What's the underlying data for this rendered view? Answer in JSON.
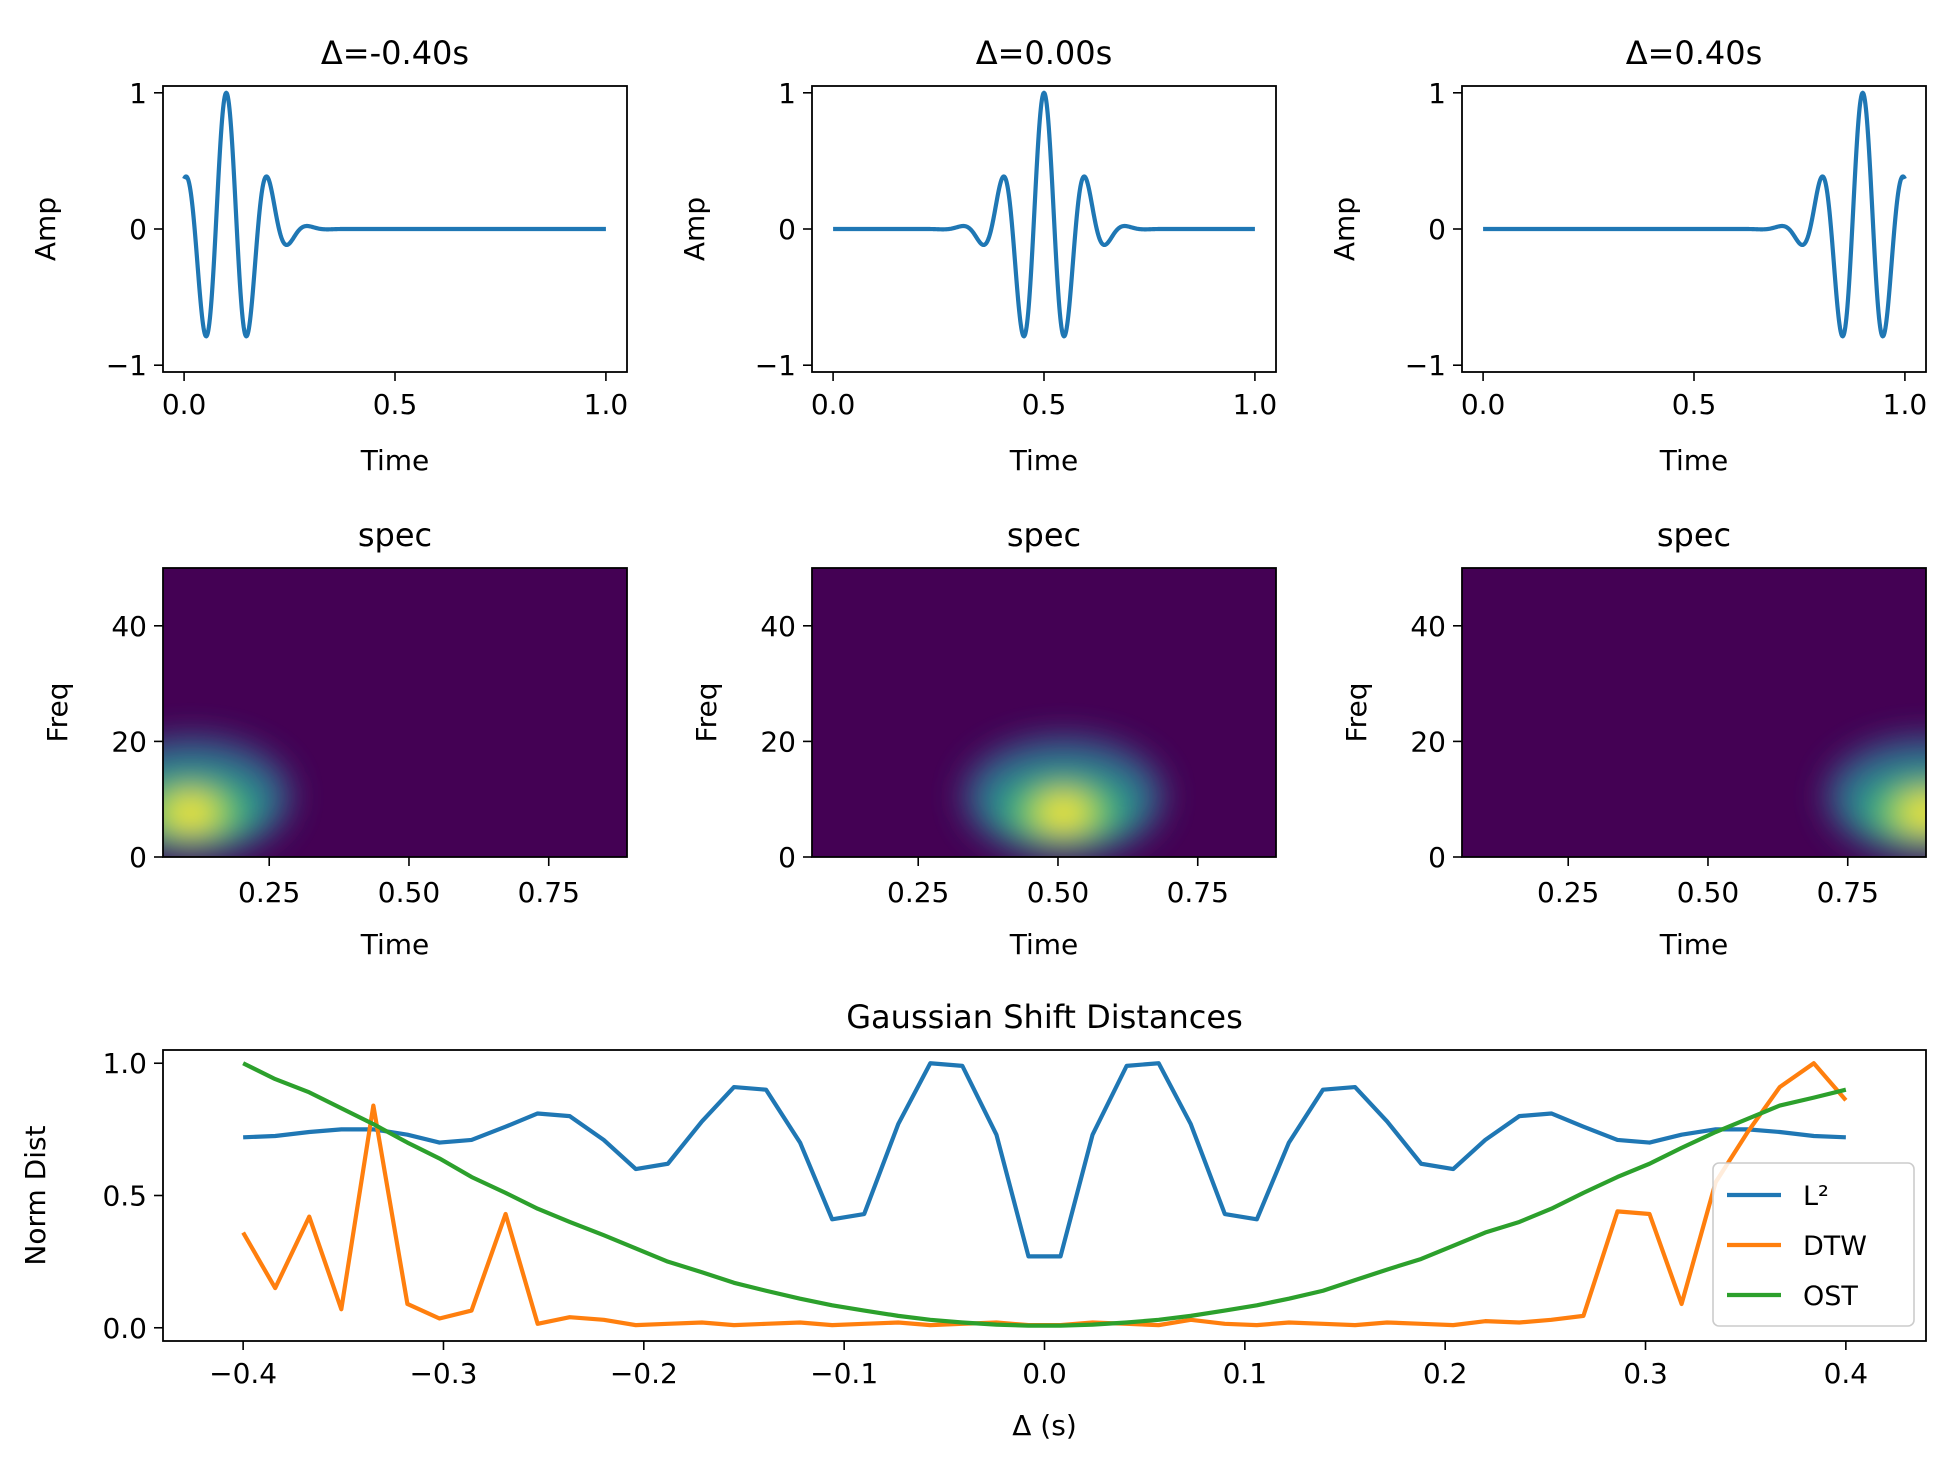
{
  "chart_data": [
    {
      "type": "line",
      "title": "Δ=-0.40s",
      "xlabel": "Time",
      "ylabel": "Amp",
      "xlim": [
        -0.05,
        1.05
      ],
      "ylim": [
        -1.05,
        1.05
      ],
      "x_ticks": [
        "0.0",
        "0.5",
        "1.0"
      ],
      "y_ticks": [
        "−1",
        "0",
        "1"
      ],
      "series": [
        {
          "center": 0.1,
          "values_note_free": true,
          "color": "#1f77b4"
        }
      ]
    },
    {
      "type": "line",
      "title": "Δ=0.00s",
      "xlabel": "Time",
      "ylabel": "Amp",
      "xlim": [
        -0.05,
        1.05
      ],
      "ylim": [
        -1.05,
        1.05
      ],
      "x_ticks": [
        "0.0",
        "0.5",
        "1.0"
      ],
      "y_ticks": [
        "−1",
        "0",
        "1"
      ],
      "series": [
        {
          "center": 0.5,
          "color": "#1f77b4"
        }
      ]
    },
    {
      "type": "line",
      "title": "Δ=0.40s",
      "xlabel": "Time",
      "ylabel": "Amp",
      "xlim": [
        -0.05,
        1.05
      ],
      "ylim": [
        -1.05,
        1.05
      ],
      "x_ticks": [
        "0.0",
        "0.5",
        "1.0"
      ],
      "y_ticks": [
        "−1",
        "0",
        "1"
      ],
      "series": [
        {
          "center": 0.9,
          "color": "#1f77b4"
        }
      ]
    },
    {
      "type": "heatmap",
      "title": "spec",
      "xlabel": "Time",
      "ylabel": "Freq",
      "xlim": [
        0.06,
        0.89
      ],
      "ylim": [
        0,
        50
      ],
      "x_ticks": [
        "0.25",
        "0.50",
        "0.75"
      ],
      "y_ticks": [
        "0",
        "20",
        "40"
      ],
      "peak": {
        "time": 0.11,
        "freq": 8
      }
    },
    {
      "type": "heatmap",
      "title": "spec",
      "xlabel": "Time",
      "ylabel": "Freq",
      "xlim": [
        0.06,
        0.89
      ],
      "ylim": [
        0,
        50
      ],
      "x_ticks": [
        "0.25",
        "0.50",
        "0.75"
      ],
      "y_ticks": [
        "0",
        "20",
        "40"
      ],
      "peak": {
        "time": 0.51,
        "freq": 8
      }
    },
    {
      "type": "heatmap",
      "title": "spec",
      "xlabel": "Time",
      "ylabel": "Freq",
      "xlim": [
        0.06,
        0.89
      ],
      "ylim": [
        0,
        50
      ],
      "x_ticks": [
        "0.25",
        "0.50",
        "0.75"
      ],
      "y_ticks": [
        "0",
        "20",
        "40"
      ],
      "peak": {
        "time": 0.89,
        "freq": 8
      }
    },
    {
      "type": "line",
      "title": "Gaussian Shift Distances",
      "xlabel": "Δ (s)",
      "ylabel": "Norm Dist",
      "xlim": [
        -0.44,
        0.44
      ],
      "ylim": [
        -0.05,
        1.05
      ],
      "x_ticks": [
        "−0.4",
        "−0.3",
        "−0.2",
        "−0.1",
        "0.0",
        "0.1",
        "0.2",
        "0.3",
        "0.4"
      ],
      "y_ticks": [
        "0.0",
        "0.5",
        "1.0"
      ],
      "legend_position": "center-right",
      "x": [
        -0.4,
        -0.384,
        -0.367,
        -0.351,
        -0.335,
        -0.318,
        -0.302,
        -0.286,
        -0.269,
        -0.253,
        -0.237,
        -0.22,
        -0.204,
        -0.188,
        -0.171,
        -0.155,
        -0.139,
        -0.122,
        -0.106,
        -0.09,
        -0.073,
        -0.057,
        -0.041,
        -0.024,
        -0.008,
        0.008,
        0.024,
        0.041,
        0.057,
        0.073,
        0.09,
        0.106,
        0.122,
        0.139,
        0.155,
        0.171,
        0.188,
        0.204,
        0.22,
        0.237,
        0.253,
        0.269,
        0.286,
        0.302,
        0.318,
        0.335,
        0.351,
        0.367,
        0.384,
        0.4
      ],
      "series": [
        {
          "name": "L²",
          "color": "#1f77b4",
          "values": [
            0.72,
            0.725,
            0.74,
            0.75,
            0.75,
            0.73,
            0.7,
            0.71,
            0.76,
            0.81,
            0.8,
            0.71,
            0.6,
            0.62,
            0.78,
            0.91,
            0.9,
            0.7,
            0.41,
            0.43,
            0.77,
            1.0,
            0.99,
            0.73,
            0.27,
            0.27,
            0.73,
            0.99,
            1.0,
            0.77,
            0.43,
            0.41,
            0.7,
            0.9,
            0.91,
            0.78,
            0.62,
            0.6,
            0.71,
            0.8,
            0.81,
            0.76,
            0.71,
            0.7,
            0.73,
            0.75,
            0.75,
            0.74,
            0.725,
            0.72
          ]
        },
        {
          "name": "DTW",
          "color": "#ff7f0e",
          "values": [
            0.36,
            0.15,
            0.42,
            0.07,
            0.84,
            0.09,
            0.035,
            0.065,
            0.43,
            0.015,
            0.04,
            0.03,
            0.01,
            0.015,
            0.02,
            0.01,
            0.015,
            0.02,
            0.01,
            0.015,
            0.02,
            0.01,
            0.015,
            0.02,
            0.01,
            0.01,
            0.02,
            0.015,
            0.01,
            0.03,
            0.015,
            0.01,
            0.02,
            0.015,
            0.01,
            0.02,
            0.015,
            0.01,
            0.025,
            0.02,
            0.03,
            0.045,
            0.44,
            0.43,
            0.09,
            0.55,
            0.74,
            0.91,
            1.0,
            0.86
          ]
        },
        {
          "name": "OST",
          "color": "#2ca02c",
          "values": [
            1.0,
            0.94,
            0.89,
            0.83,
            0.77,
            0.7,
            0.64,
            0.57,
            0.51,
            0.45,
            0.4,
            0.35,
            0.3,
            0.25,
            0.21,
            0.17,
            0.14,
            0.11,
            0.085,
            0.065,
            0.045,
            0.03,
            0.02,
            0.012,
            0.008,
            0.008,
            0.012,
            0.02,
            0.03,
            0.045,
            0.065,
            0.085,
            0.11,
            0.14,
            0.18,
            0.22,
            0.26,
            0.31,
            0.36,
            0.4,
            0.45,
            0.51,
            0.57,
            0.62,
            0.68,
            0.74,
            0.79,
            0.84,
            0.87,
            0.9
          ]
        }
      ]
    }
  ]
}
